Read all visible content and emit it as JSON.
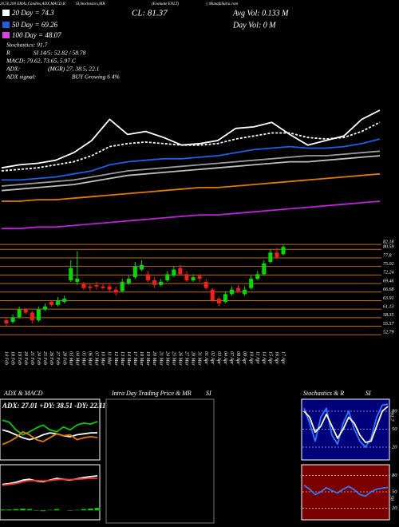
{
  "chart_data": [
    {
      "type": "candlestick",
      "annotations": [
        "20,50,200 EMAs,Candles,ADX,MACD,R",
        "SI,Stochastics,MR",
        "(Evaluate ENLT)",
        "|| MunafaSutra.com",
        "20 Day = 74.3",
        "50 Day = 69.26",
        "100 Day = 48.07",
        "Stochastics: 91.7",
        "R",
        "SI 14/5: 52.82 / 58.78",
        "MACD: 79.62, 73.65, 5.97 C",
        "ADX:",
        "(MGR) 27, 38.5, 22.1",
        "ADX signal:",
        "BUY Growing 6 4%",
        "CL: 81.37",
        "Avg Vol: 0.133 M",
        "Day Vol: 0 M"
      ],
      "categories": [
        "14 Feb",
        "18 Feb",
        "19 Feb",
        "20 Feb",
        "21 Feb",
        "24 Feb",
        "25 Feb",
        "26 Feb",
        "27 Feb",
        "28 Feb",
        "03 Mar",
        "04 Mar",
        "05 Mar",
        "06 Mar",
        "07 Mar",
        "10 Mar",
        "11 Mar",
        "12 Mar",
        "13 Mar",
        "14 Mar",
        "17 Mar",
        "18 Mar",
        "19 Mar",
        "20 Mar",
        "21 Mar",
        "24 Mar",
        "25 Mar",
        "26 Mar",
        "27 Mar",
        "28 Mar",
        "31 Mar",
        "01 Apr",
        "02 Apr",
        "03 Apr",
        "04 Apr",
        "07 Apr",
        "08 Apr",
        "09 Apr",
        "10 Apr",
        "11 Apr",
        "14 Apr",
        "15 Apr",
        "16 Apr",
        "17 Apr"
      ],
      "open": [
        57.5,
        57.0,
        58.5,
        61.0,
        60.0,
        57.5,
        61.0,
        63.5,
        62.5,
        63.5,
        70.5,
        70.0,
        69.5,
        68.5,
        69.0,
        68.5,
        68.5,
        67.5,
        67.0,
        69.5,
        71.5,
        74.0,
        72.5,
        70.5,
        69.0,
        70.5,
        72.0,
        74.5,
        72.5,
        70.5,
        72.0,
        70.0,
        67.5,
        64.5,
        63.5,
        66.0,
        68.0,
        66.0,
        68.0,
        71.0,
        72.5,
        76.5,
        79.5,
        79.0
      ],
      "high": [
        58.5,
        59.5,
        62.0,
        61.5,
        60.5,
        62.0,
        63.0,
        64.0,
        65.0,
        65.5,
        77.0,
        80.0,
        70.0,
        69.5,
        70.0,
        69.5,
        69.5,
        68.5,
        71.0,
        72.0,
        76.5,
        77.0,
        73.5,
        71.5,
        71.0,
        73.5,
        75.0,
        75.5,
        73.5,
        72.5,
        72.5,
        71.0,
        68.0,
        65.0,
        67.0,
        68.5,
        69.0,
        68.5,
        72.0,
        73.5,
        77.0,
        80.5,
        81.0,
        82.0
      ],
      "low": [
        55.5,
        56.5,
        58.0,
        59.5,
        56.5,
        57.0,
        60.5,
        62.0,
        62.0,
        63.0,
        70.0,
        69.0,
        67.5,
        67.0,
        67.5,
        67.5,
        66.5,
        65.5,
        66.5,
        69.0,
        71.0,
        73.5,
        70.0,
        68.0,
        68.5,
        70.0,
        71.5,
        72.0,
        70.0,
        70.0,
        70.0,
        67.5,
        63.5,
        62.0,
        63.0,
        65.5,
        66.5,
        65.5,
        67.5,
        70.5,
        72.0,
        76.0,
        77.5,
        78.5
      ],
      "close": [
        56.5,
        58.5,
        61.0,
        60.0,
        57.5,
        61.0,
        62.0,
        62.5,
        64.0,
        64.5,
        74.5,
        71.0,
        68.0,
        68.0,
        68.5,
        68.0,
        67.5,
        66.5,
        70.0,
        71.0,
        75.0,
        75.5,
        70.5,
        69.0,
        70.0,
        72.5,
        74.0,
        72.5,
        70.5,
        71.5,
        71.0,
        68.0,
        64.0,
        63.0,
        66.0,
        67.5,
        67.0,
        67.5,
        71.0,
        72.5,
        76.0,
        79.5,
        78.0,
        81.37
      ],
      "up_color": "#00dd00",
      "down_color": "#ff1a1a",
      "grid_color": "#c06a10",
      "ylim": [
        50,
        84.8
      ],
      "yticks": [
        82.18,
        80.59,
        77.8,
        75.02,
        72.24,
        69.46,
        66.68,
        63.91,
        61.13,
        58.35,
        55.57,
        52.79
      ],
      "grid": true
    },
    {
      "type": "line",
      "ylim": [
        0,
        100
      ],
      "series": [
        {
          "color": "#ffffff",
          "values": [
            42,
            44,
            45,
            47,
            52,
            60,
            74,
            64,
            66,
            62,
            57,
            58,
            60,
            68,
            69,
            72,
            64,
            57,
            60,
            63,
            74,
            80
          ]
        },
        {
          "color": "#ffffff",
          "dash": true,
          "values": [
            40,
            41,
            42,
            44,
            46,
            50,
            56,
            58,
            59,
            58,
            57,
            57,
            58,
            61,
            63,
            65,
            65,
            62,
            61,
            62,
            66,
            72
          ]
        },
        {
          "color": "#1f5fe6",
          "values": [
            34,
            34,
            35,
            36,
            38,
            40,
            44,
            46,
            47,
            48,
            48,
            49,
            50,
            52,
            54,
            55,
            56,
            55,
            55,
            56,
            58,
            61
          ]
        },
        {
          "color": "#9a9a9a",
          "values": [
            30,
            31,
            32,
            33,
            34,
            36,
            38,
            40,
            41,
            42,
            43,
            44,
            45,
            46,
            47,
            48,
            49,
            50,
            50,
            51,
            52,
            53
          ]
        },
        {
          "color": "#bdbdbd",
          "values": [
            27,
            28,
            29,
            30,
            31,
            33,
            35,
            37,
            38,
            39,
            40,
            41,
            42,
            43,
            44,
            45,
            46,
            46,
            47,
            48,
            49,
            50
          ]
        },
        {
          "color": "#e07b00",
          "values": [
            20,
            20,
            21,
            21,
            22,
            23,
            24,
            25,
            26,
            27,
            28,
            29,
            29,
            30,
            31,
            32,
            33,
            34,
            35,
            36,
            37,
            38
          ]
        },
        {
          "color": "#c020e0",
          "values": [
            2,
            2,
            3,
            3,
            4,
            5,
            6,
            7,
            8,
            9,
            10,
            11,
            11,
            12,
            13,
            14,
            15,
            16,
            17,
            18,
            19,
            20
          ]
        }
      ]
    },
    {
      "type": "line",
      "title": "ADX & MACD",
      "subtitle": "ADX: 27.01 +DY: 38.51 -DY: 22.11",
      "ylim": [
        0,
        50
      ],
      "series": [
        {
          "color": "#ffffff",
          "values": [
            30,
            28,
            25,
            22,
            20,
            22,
            25,
            27,
            26,
            24,
            23,
            25,
            26,
            27,
            27.01
          ]
        },
        {
          "color": "#00cc00",
          "values": [
            40,
            38,
            30,
            25,
            28,
            32,
            35,
            30,
            28,
            33,
            30,
            35,
            37,
            36,
            38.51
          ]
        },
        {
          "color": "#e07b00",
          "values": [
            15,
            18,
            22,
            28,
            25,
            20,
            18,
            22,
            26,
            24,
            25,
            20,
            22,
            23,
            22.11
          ]
        }
      ]
    },
    {
      "type": "line",
      "ylim": [
        -20,
        100
      ],
      "series": [
        {
          "type": "bar",
          "color": "#00cc00",
          "values": [
            2,
            2,
            3,
            4,
            3,
            -1,
            -2,
            1,
            3,
            0,
            -1,
            1,
            3,
            4,
            5.97
          ]
        },
        {
          "color": "#ffffff",
          "values": [
            60,
            62,
            65,
            70,
            72,
            68,
            66,
            70,
            74,
            72,
            70,
            73,
            76,
            78,
            79.62
          ]
        },
        {
          "color": "#ff3030",
          "values": [
            58,
            60,
            62,
            66,
            69,
            69,
            68,
            69,
            71,
            72,
            71,
            72,
            73,
            74,
            73.65
          ]
        }
      ]
    },
    {
      "type": "empty",
      "title": "Intra Day Trading Price & MR",
      "subtitle": "SI"
    },
    {
      "type": "line",
      "title": "Stochastics & R",
      "subtitle": "SI",
      "background": "#00007a",
      "ylim": [
        0,
        100
      ],
      "yticks": [
        80,
        50,
        20
      ],
      "grid": true,
      "series": [
        {
          "color": "#2a7bff",
          "values": [
            85,
            60,
            30,
            70,
            85,
            40,
            25,
            60,
            80,
            50,
            30,
            20,
            35,
            70,
            90,
            91.7
          ]
        },
        {
          "color": "#ffffff",
          "values": [
            80,
            70,
            45,
            55,
            75,
            55,
            35,
            50,
            70,
            60,
            40,
            28,
            30,
            55,
            80,
            88
          ]
        }
      ]
    },
    {
      "type": "line",
      "background": "#7a0000",
      "ylim": [
        0,
        100
      ],
      "yticks": [
        80,
        50,
        20
      ],
      "grid": true,
      "series": [
        {
          "color": "#2a7bff",
          "values": [
            62,
            55,
            45,
            50,
            58,
            52,
            48,
            55,
            60,
            54,
            45,
            42,
            50,
            55,
            57,
            58
          ]
        }
      ]
    }
  ]
}
